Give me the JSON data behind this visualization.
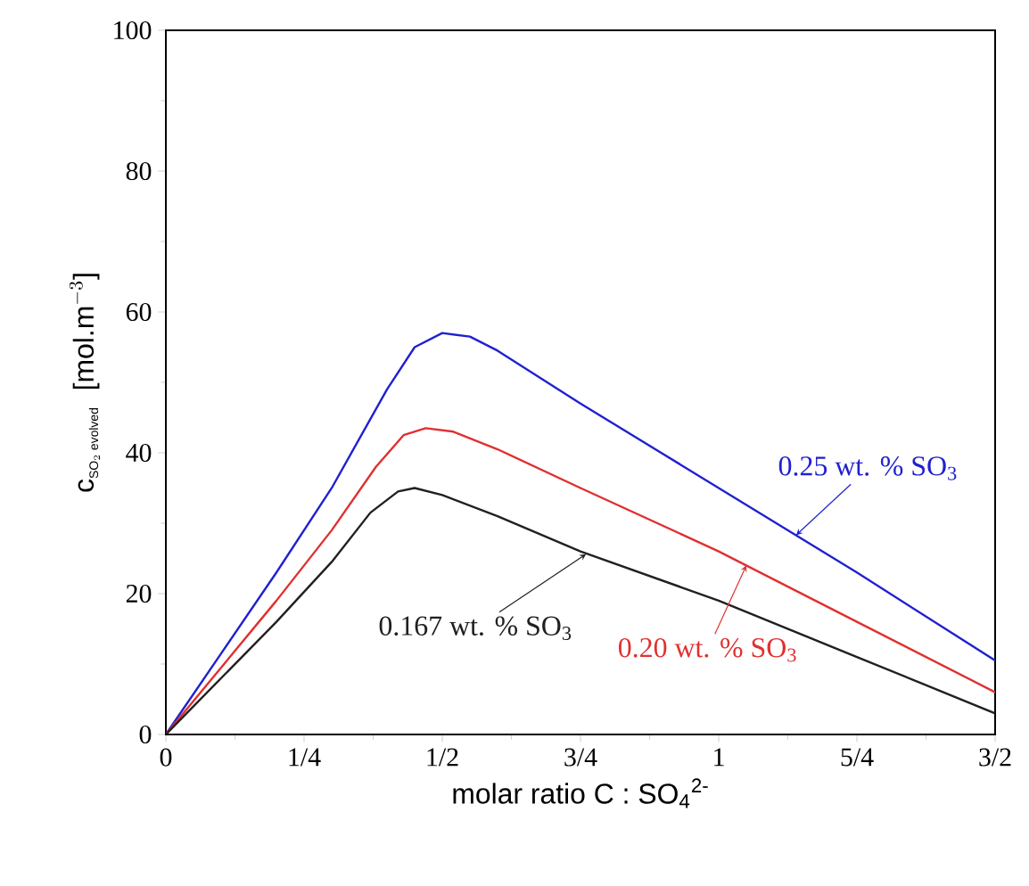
{
  "chart_data": {
    "type": "line",
    "xlabel": "molar ratio C : SO$_{4}$$^{2-}$",
    "ylabel": "\\mbox{c}_{\\mbox{\\scriptsize SO$_2$ evolved}}\\ \\ \\mbox{[mol.m$^{-3}$]}",
    "xlim": [
      0,
      1.5
    ],
    "ylim": [
      0,
      100
    ],
    "xticks": [
      0,
      {
        "value": 0.25,
        "label": "1/4"
      },
      {
        "value": 0.5,
        "label": "1/2"
      },
      {
        "value": 0.75,
        "label": "3/4"
      },
      1,
      {
        "value": 1.25,
        "label": "5/4"
      },
      {
        "value": 1.5,
        "label": "3/2"
      }
    ],
    "yticks": [
      0,
      20,
      40,
      60,
      80,
      100
    ],
    "grid": false,
    "marker": "none",
    "line_style": "solid",
    "series": [
      {
        "color": "#2020d0",
        "x": [
          0,
          0.1,
          0.2,
          0.3,
          0.4,
          0.45,
          0.5,
          0.55,
          0.6,
          0.75,
          1,
          1.25,
          1.5
        ],
        "values": [
          0,
          11.5,
          23,
          35,
          49,
          55,
          57,
          56.5,
          54.5,
          47,
          35,
          23,
          10.5
        ]
      },
      {
        "color": "#e03030",
        "x": [
          0,
          0.1,
          0.2,
          0.3,
          0.38,
          0.43,
          0.47,
          0.52,
          0.6,
          0.75,
          1,
          1.25,
          1.5
        ],
        "values": [
          0,
          9.5,
          19,
          29,
          38,
          42.5,
          43.5,
          43,
          40.5,
          35,
          26,
          16,
          6
        ]
      },
      {
        "color": "#202020",
        "x": [
          0,
          0.1,
          0.2,
          0.3,
          0.37,
          0.42,
          0.45,
          0.5,
          0.6,
          0.75,
          1,
          1.25,
          1.5
        ],
        "values": [
          0,
          8,
          16,
          24.5,
          31.5,
          34.5,
          35,
          34,
          31,
          26,
          19,
          11,
          3
        ]
      }
    ],
    "annotations": [
      {
        "text": "0.25 wt. % SO$_{3}$",
        "x": 1.14,
        "y": 28.3
      },
      {
        "text": "0.20 wt. % SO$_{3}$",
        "x": 1.05,
        "y": 24
      },
      {
        "text": "0.167 wt. % SO$_{3}$",
        "x": 0.76,
        "y": 25.6
      }
    ]
  }
}
